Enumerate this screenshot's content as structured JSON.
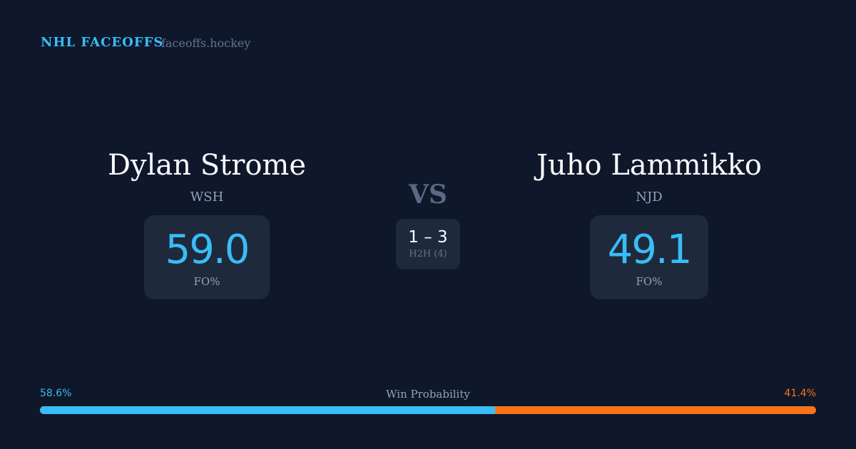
{
  "header": {
    "brand": "NHL FACEOFFS",
    "site": "faceoffs.hockey"
  },
  "left": {
    "name": "Dylan Strome",
    "team": "WSH",
    "fo_pct": "59.0",
    "fo_label": "FO%"
  },
  "right": {
    "name": "Juho Lammikko",
    "team": "NJD",
    "fo_pct": "49.1",
    "fo_label": "FO%"
  },
  "center": {
    "vs": "VS",
    "score": "1 – 3",
    "h2h": "H2H (4)"
  },
  "win_probability": {
    "label": "Win Probability",
    "left_pct": "58.6%",
    "right_pct": "41.4%",
    "left_fraction": 0.586,
    "left_color": "#38bdf8",
    "right_color": "#f97316"
  }
}
